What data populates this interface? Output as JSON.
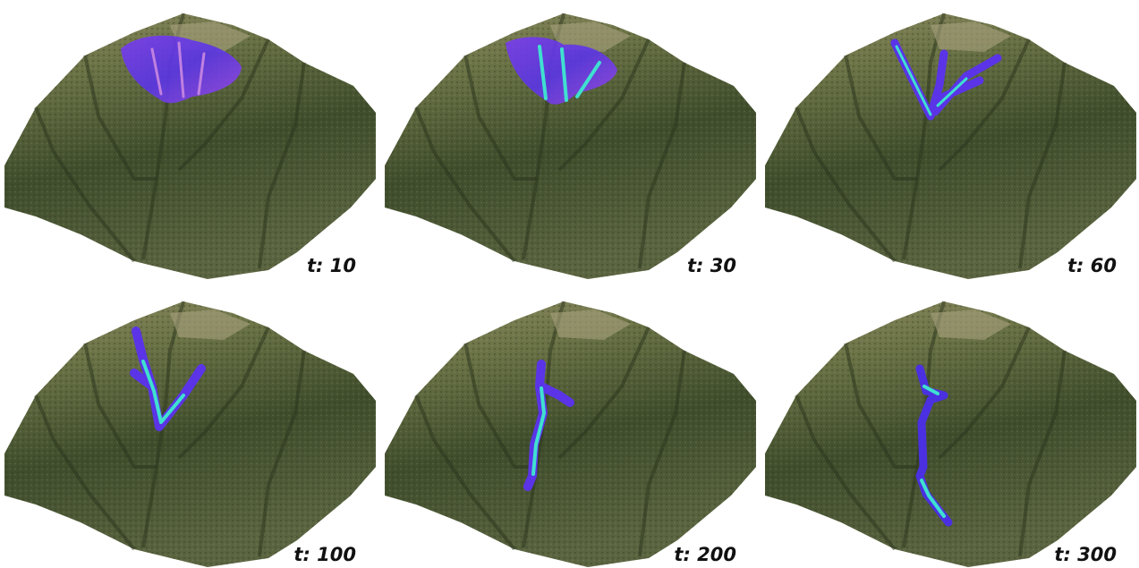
{
  "panels": [
    {
      "label": "t: 10"
    },
    {
      "label": "t: 30"
    },
    {
      "label": "t: 60"
    },
    {
      "label": "t: 100"
    },
    {
      "label": "t: 200"
    },
    {
      "label": "t: 300"
    }
  ]
}
